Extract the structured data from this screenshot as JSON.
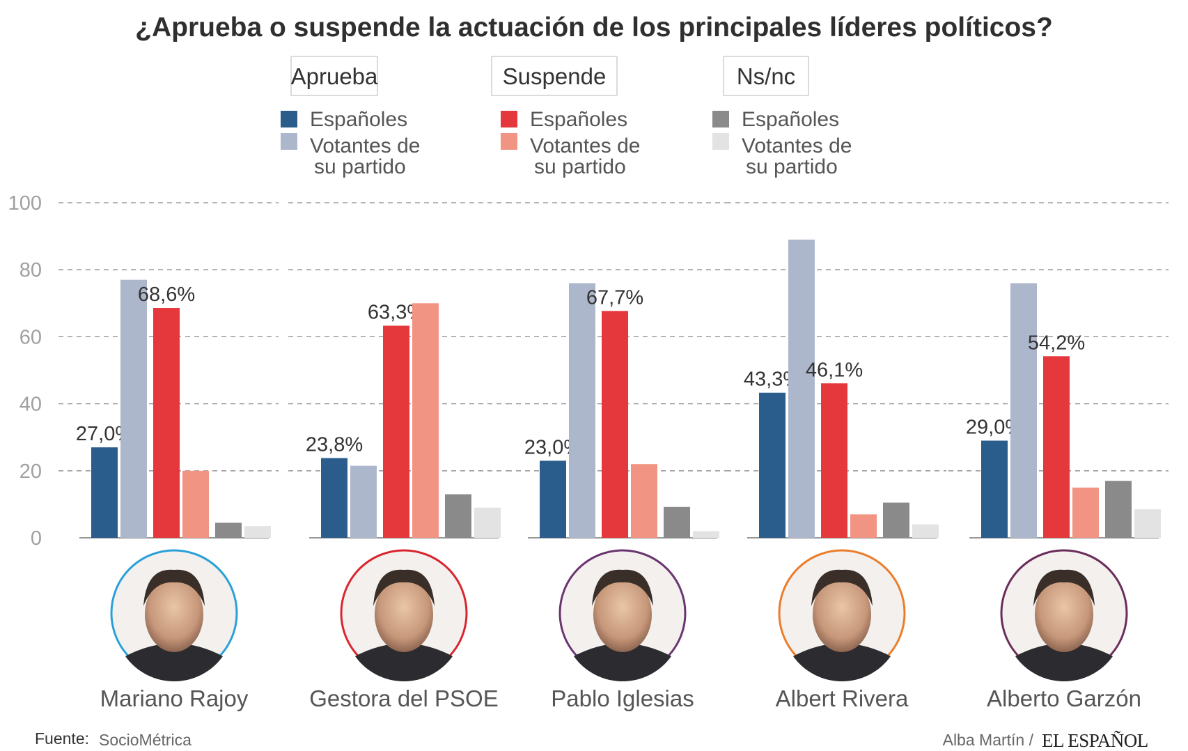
{
  "chart_data": {
    "type": "bar",
    "title": "¿Aprueba o suspende la actuación de los principales líderes políticos?",
    "ylim": [
      0,
      100
    ],
    "yticks": [
      0,
      20,
      40,
      60,
      80,
      100
    ],
    "grid": true,
    "legend": [
      {
        "group": "Aprueba",
        "items": [
          {
            "label": "Españoles",
            "color": "#2b5d8c"
          },
          {
            "label": "Votantes de su partido",
            "color": "#adb7cc"
          }
        ]
      },
      {
        "group": "Suspende",
        "items": [
          {
            "label": "Españoles",
            "color": "#e5383c"
          },
          {
            "label": "Votantes de su partido",
            "color": "#f29483"
          }
        ]
      },
      {
        "group": "Ns/nc",
        "items": [
          {
            "label": "Españoles",
            "color": "#8a8a8a"
          },
          {
            "label": "Votantes de su partido",
            "color": "#e3e3e3"
          }
        ]
      }
    ],
    "series_names": [
      "Aprueba · Españoles",
      "Aprueba · Votantes de su partido",
      "Suspende · Españoles",
      "Suspende · Votantes de su partido",
      "Ns/nc · Españoles",
      "Ns/nc · Votantes de su partido"
    ],
    "leaders": [
      {
        "name": "Mariano Rajoy",
        "ring_color": "#2aa0d8",
        "values": [
          27.0,
          77.0,
          68.6,
          20.0,
          4.5,
          3.5
        ],
        "labels": {
          "0": "27,0%",
          "2": "68,6%"
        }
      },
      {
        "name": "Gestora del PSOE",
        "ring_color": "#d9252e",
        "values": [
          23.8,
          21.5,
          63.3,
          70.0,
          13.0,
          9.0
        ],
        "labels": {
          "0": "23,8%",
          "2": "63,3%"
        }
      },
      {
        "name": "Pablo Iglesias",
        "ring_color": "#6a3470",
        "values": [
          23.0,
          76.0,
          67.7,
          22.0,
          9.2,
          2.0
        ],
        "labels": {
          "0": "23,0%",
          "2": "67,7%"
        }
      },
      {
        "name": "Albert Rivera",
        "ring_color": "#eb7d2b",
        "values": [
          43.3,
          89.0,
          46.1,
          7.0,
          10.5,
          4.0
        ],
        "labels": {
          "0": "43,3%",
          "2": "46,1%"
        }
      },
      {
        "name": "Alberto Garzón",
        "ring_color": "#6a2c5a",
        "values": [
          29.0,
          76.0,
          54.2,
          15.0,
          17.0,
          8.5
        ],
        "labels": {
          "0": "29,0%",
          "2": "54,2%"
        }
      }
    ]
  },
  "footer": {
    "source_label": "Fuente:",
    "source_value": "SocioMétrica",
    "author": "Alba Martín /",
    "brand": "EL ESPAÑOL"
  }
}
